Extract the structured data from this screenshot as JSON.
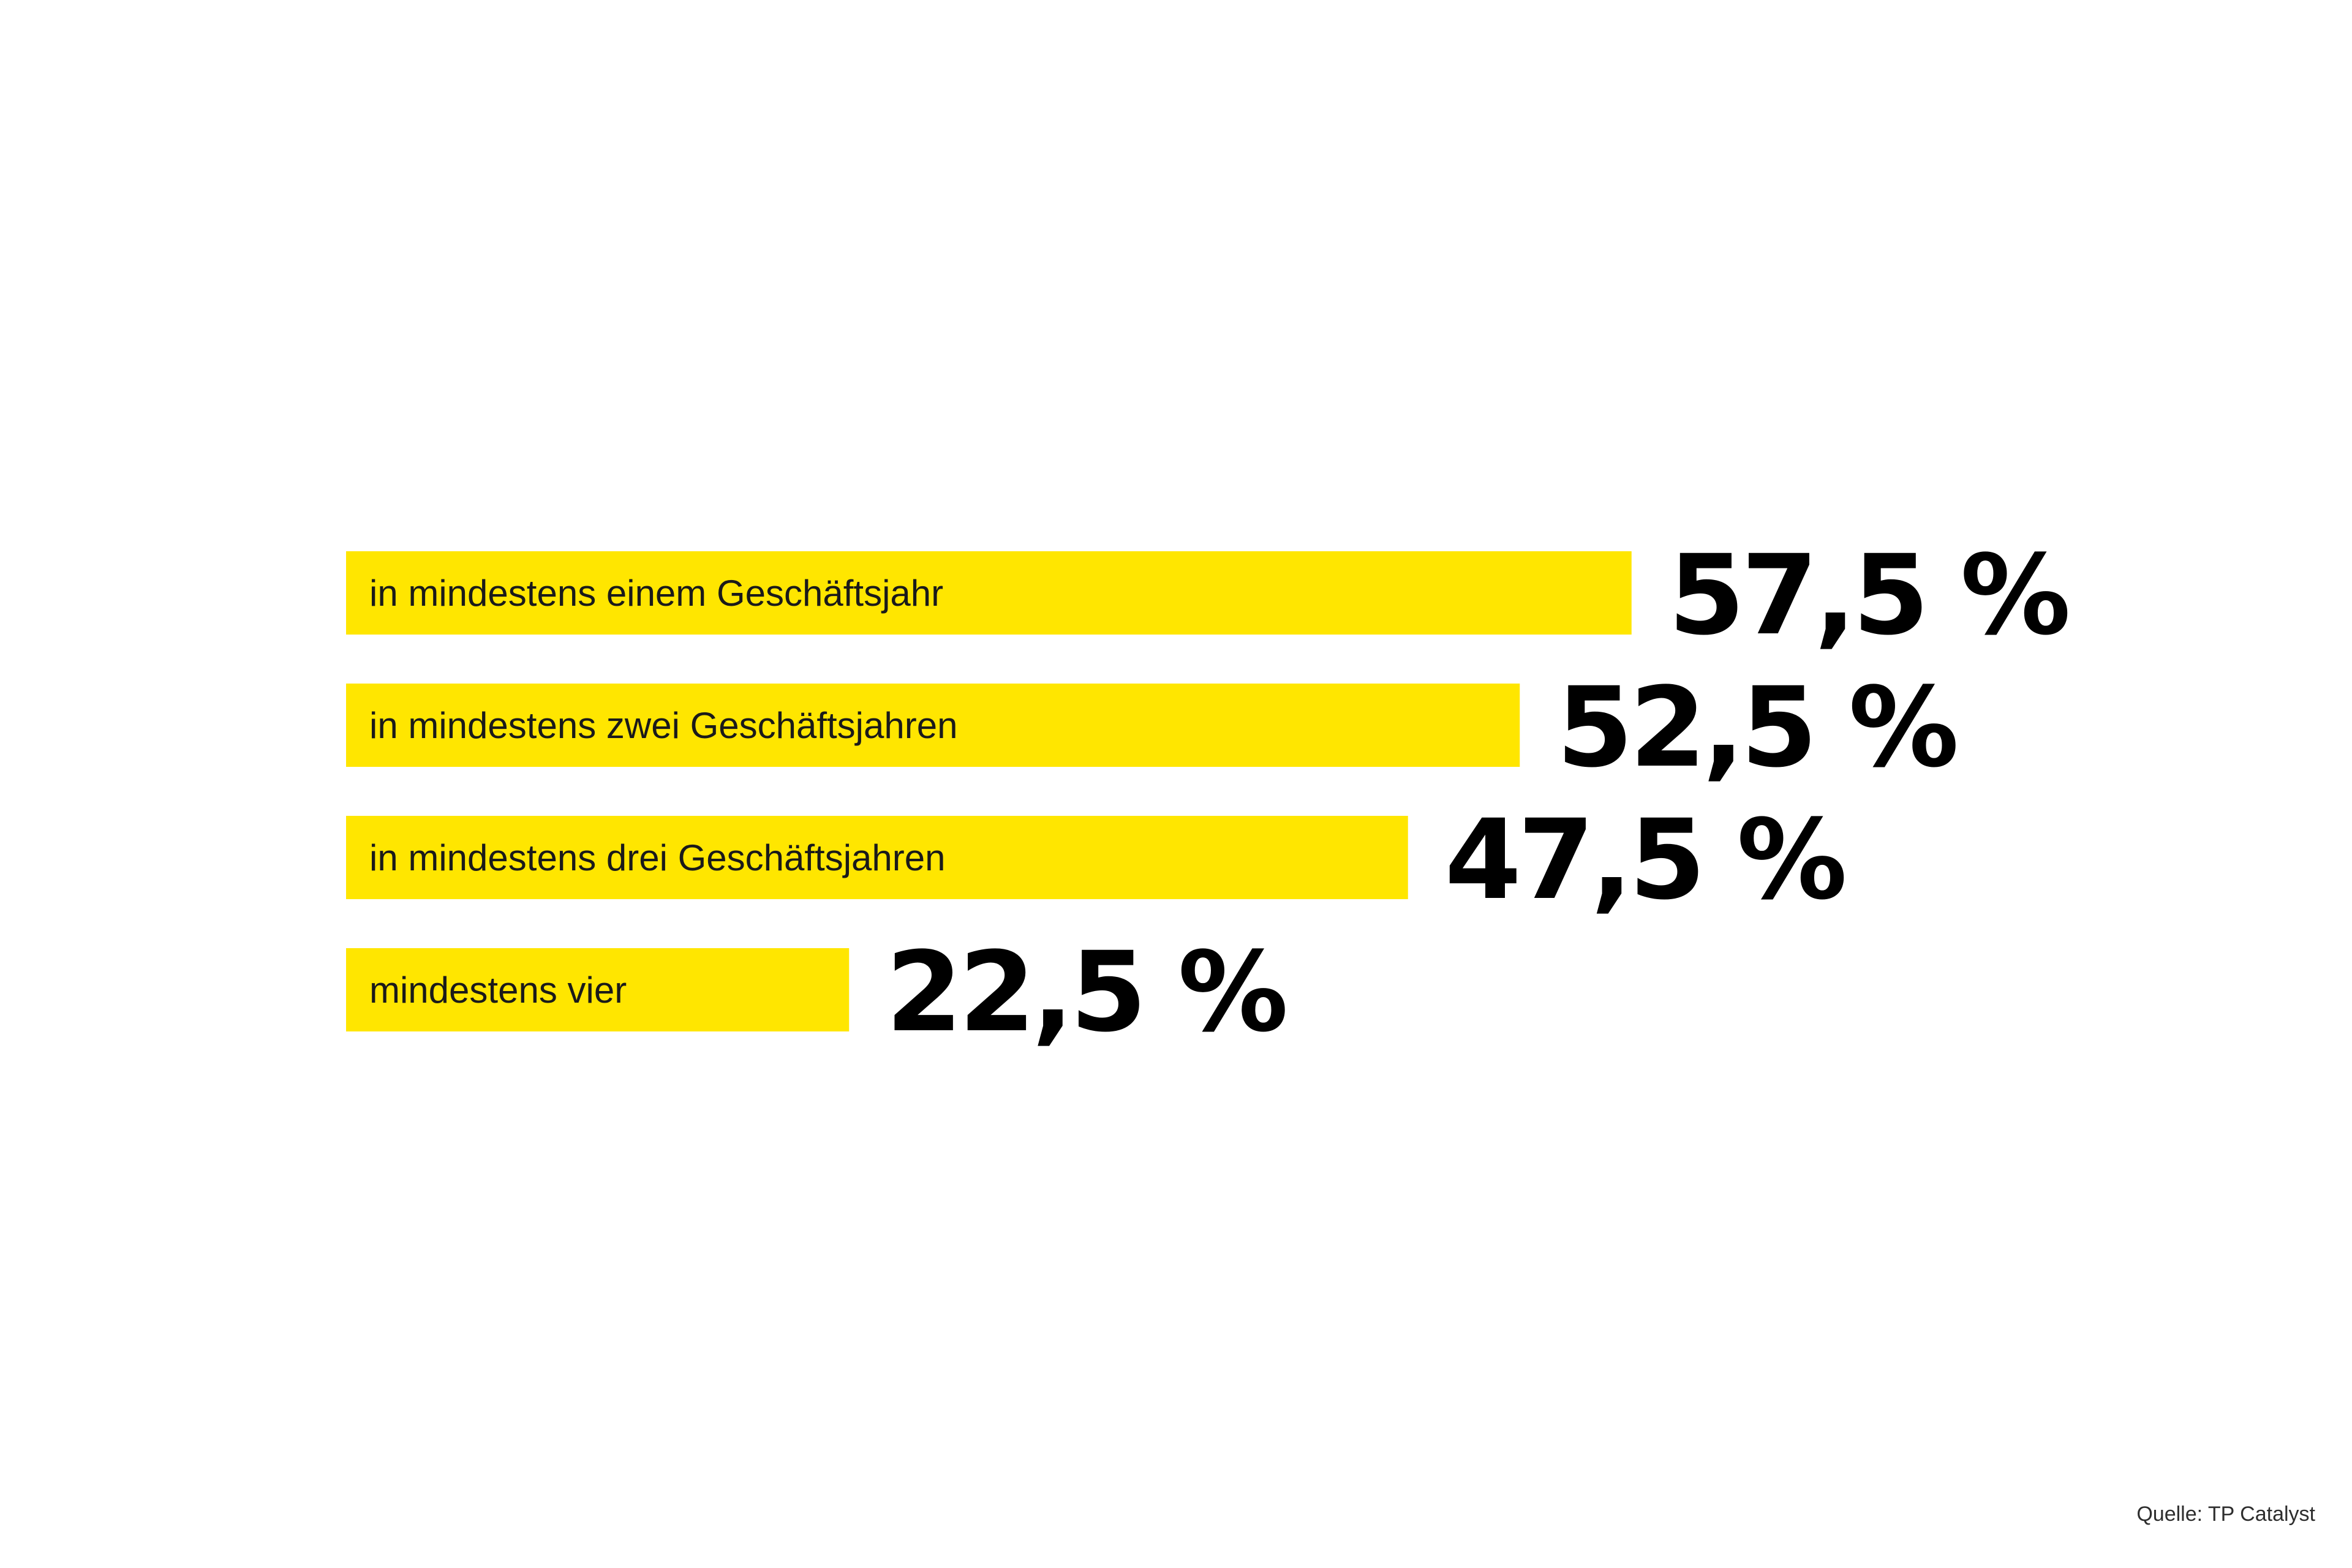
{
  "chart_data": {
    "type": "bar",
    "orientation": "horizontal",
    "categories": [
      "in mindestens einem Geschäftsjahr",
      "in mindestens zwei Geschäftsjahren",
      "in mindestens drei Geschäftsjahren",
      "mindestens vier"
    ],
    "values": [
      57.5,
      52.5,
      47.5,
      22.5
    ],
    "value_labels": [
      "57,5 %",
      "52,5 %",
      "47,5 %",
      "22,5 %"
    ],
    "unit": "%",
    "bar_color": "#FFE600",
    "grid": false,
    "axes_visible": false
  },
  "source": "Quelle: TP Catalyst"
}
